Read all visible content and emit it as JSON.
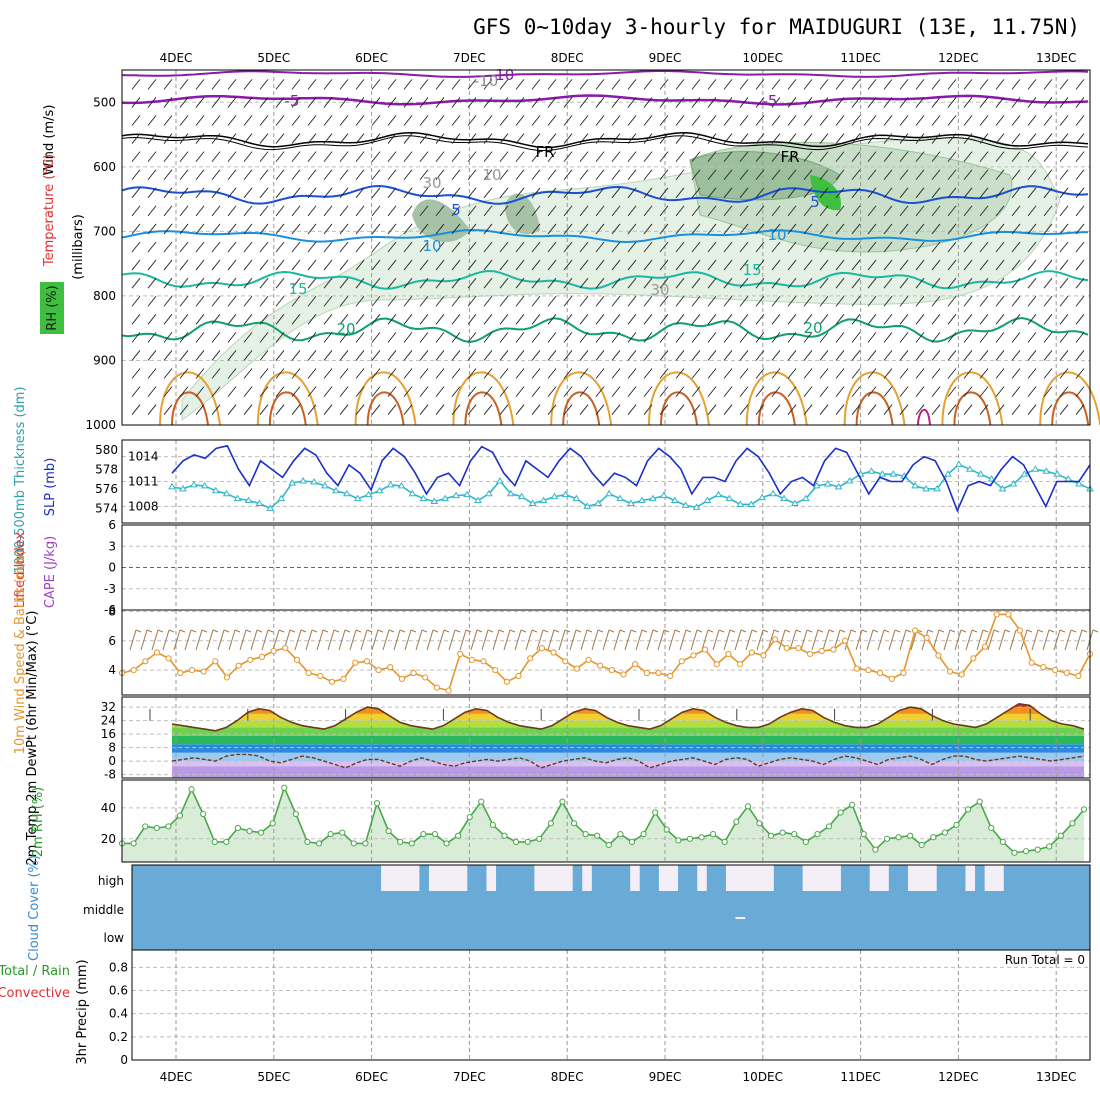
{
  "title": "GFS 0~10day 3-hourly for MAIDUGURI (13E, 11.75N)",
  "dates": [
    "4DEC",
    "5DEC",
    "6DEC",
    "7DEC",
    "8DEC",
    "9DEC",
    "10DEC",
    "11DEC",
    "12DEC",
    "13DEC"
  ],
  "colors": {
    "frame": "#000000",
    "grid": "#9a9a9a",
    "rh_green": "#3fbf3f",
    "temp_purple": "#8a1aa8",
    "temp_blue": "#1a4fd6",
    "temp_lblue": "#1a90e0",
    "temp_teal": "#1ab8a0",
    "temp_green": "#10a070",
    "temp_orange": "#e6a030",
    "slp": "#1a2fc8",
    "thick": "#30b8c8",
    "li": "#e03030",
    "wind10": "#e6962a",
    "barb10": "#a0784a",
    "rh2m": "#4aa84a",
    "cloud": "#6aaad6",
    "cloud_gap": "#f4eef6"
  },
  "chart_data": [
    {
      "panel": "upper-air",
      "type": "line",
      "ylabel": "(millibars)",
      "yticks": [
        500,
        600,
        700,
        800,
        900,
        1000
      ],
      "side_labels": [
        "Wind (m/s)",
        "Temperature (°C)",
        "RH (%)"
      ],
      "isotherm_labels": [
        {
          "text": "-10"
        },
        {
          "text": "-5"
        },
        {
          "text": "-5"
        },
        {
          "text": "FR"
        },
        {
          "text": "FR"
        },
        {
          "text": "5"
        },
        {
          "text": "5"
        },
        {
          "text": "10"
        },
        {
          "text": "10"
        },
        {
          "text": "15"
        },
        {
          "text": "15"
        },
        {
          "text": "20"
        },
        {
          "text": "20"
        },
        {
          "text": "-10"
        },
        {
          "text": "30"
        },
        {
          "text": "30"
        },
        {
          "text": "10"
        }
      ]
    },
    {
      "panel": "slp-thickness",
      "type": "line",
      "left_ticks": [
        574,
        576,
        578,
        580
      ],
      "right_ticks": [
        1008,
        1011,
        1014
      ],
      "left_label": "1000-500mb Thickness (dm)",
      "right_label": "SLP (mb)",
      "series": [
        {
          "name": "SLP",
          "values": [
            1012.0,
            1013.5,
            1014.2,
            1013.8,
            1015.0,
            1015.3,
            1012.5,
            1010.5,
            1013.5,
            1012.5,
            1011.5,
            1013.5,
            1015.0,
            1014.2,
            1012.0,
            1010.5,
            1013.0,
            1012.0,
            1010.0,
            1013.5,
            1015.0,
            1014.0,
            1012.0,
            1009.5,
            1011.5,
            1012.0,
            1010.5,
            1013.5,
            1015.2,
            1014.5,
            1012.0,
            1010.5,
            1013.5,
            1012.5,
            1011.5,
            1013.5,
            1015.0,
            1014.0,
            1012.0,
            1010.5,
            1012.0,
            1011.5,
            1010.5,
            1013.5,
            1015.0,
            1014.0,
            1012.5,
            1009.5,
            1011.5,
            1011.5,
            1011.0,
            1013.5,
            1015.0,
            1014.0,
            1012.0,
            1009.5,
            1011.0,
            1011.5,
            1010.5,
            1013.5,
            1015.0,
            1014.5,
            1012.0,
            1009.5,
            1011.5,
            1011.0,
            1011.0,
            1013.0,
            1014.0,
            1013.5,
            1011.0,
            1007.5,
            1010.5,
            1011.0,
            1010.5,
            1012.5,
            1014.0,
            1013.0,
            1010.5,
            1008.0,
            1011.0,
            1011.0,
            1011.0,
            1013.0
          ]
        },
        {
          "name": "Thickness",
          "values": [
            576.2,
            576.0,
            576.4,
            576.3,
            575.8,
            575.5,
            575.0,
            574.8,
            574.5,
            574.0,
            575.0,
            576.6,
            576.8,
            576.7,
            576.3,
            575.8,
            575.5,
            575.0,
            575.4,
            575.8,
            576.4,
            576.3,
            575.5,
            575.0,
            574.7,
            575.0,
            575.3,
            575.4,
            574.8,
            575.5,
            576.8,
            575.5,
            575.2,
            574.5,
            574.8,
            575.2,
            575.4,
            575.0,
            574.2,
            574.5,
            575.5,
            575.0,
            574.5,
            574.8,
            575.0,
            575.3,
            574.8,
            574.3,
            574.1,
            574.8,
            575.4,
            575.0,
            574.4,
            574.4,
            575.1,
            575.5,
            575.0,
            574.5,
            575.0,
            576.3,
            576.5,
            576.2,
            576.8,
            577.5,
            577.8,
            577.5,
            577.5,
            577.3,
            576.3,
            576.0,
            576.0,
            577.5,
            578.5,
            578.0,
            577.5,
            577.0,
            576.0,
            576.5,
            577.5,
            578.0,
            577.8,
            577.5,
            577.0,
            576.5,
            576.0
          ]
        }
      ]
    },
    {
      "panel": "cape-li",
      "type": "line",
      "left_ticks": [
        6,
        3,
        0,
        -3,
        -6
      ],
      "label_li": "Lifted Index",
      "label_cape": "CAPE (J/kg)",
      "series": [
        {
          "name": "Lifted Index",
          "values": [
            0
          ]
        }
      ]
    },
    {
      "panel": "wind10m",
      "type": "line",
      "yticks": [
        4,
        6,
        8
      ],
      "ylabel": "10m Wind Speed & Barbs (m/s)",
      "series": [
        {
          "name": "10m Wind Speed",
          "values": [
            3.8,
            4.0,
            4.6,
            5.2,
            4.8,
            3.8,
            4.0,
            3.9,
            4.6,
            3.5,
            4.3,
            4.7,
            4.9,
            5.3,
            5.5,
            4.7,
            3.8,
            3.6,
            3.2,
            3.4,
            4.5,
            4.6,
            4.0,
            4.2,
            3.4,
            3.8,
            3.5,
            2.8,
            2.6,
            5.1,
            4.7,
            4.6,
            4.0,
            3.2,
            3.6,
            4.8,
            5.5,
            5.2,
            4.6,
            4.1,
            4.7,
            4.3,
            4.0,
            3.7,
            4.4,
            3.8,
            3.8,
            3.6,
            4.6,
            5.0,
            5.4,
            4.4,
            5.1,
            4.4,
            5.2,
            5.0,
            6.1,
            5.5,
            5.5,
            5.1,
            5.3,
            5.4,
            6.0,
            4.1,
            4.0,
            3.8,
            3.4,
            3.8,
            6.7,
            6.2,
            5.0,
            3.9,
            3.7,
            4.8,
            5.6,
            7.8,
            7.8,
            6.7,
            4.5,
            4.2,
            4.0,
            3.8,
            3.6,
            5.1
          ]
        }
      ]
    },
    {
      "panel": "temp2m",
      "type": "area",
      "yticks": [
        32,
        24,
        16,
        8,
        0,
        -8
      ],
      "ylabel": "2m Temp 2m DewPt (6hr Min/Max) (°C)",
      "series": [
        {
          "name": "2m Temp",
          "values": [
            22,
            21,
            20,
            19,
            18,
            20,
            24,
            29,
            31,
            30,
            26,
            23,
            21,
            20,
            19,
            21,
            25,
            29,
            32,
            31,
            27,
            23,
            21,
            20,
            19,
            21,
            25,
            29,
            31,
            30,
            26,
            23,
            21,
            20,
            19,
            21,
            25,
            29,
            31,
            30,
            26,
            23,
            21,
            20,
            19,
            21,
            25,
            29,
            31,
            30,
            26,
            23,
            21,
            20,
            20,
            22,
            26,
            29,
            31,
            30,
            26,
            23,
            21,
            20,
            20,
            22,
            26,
            30,
            32,
            31,
            27,
            24,
            22,
            21,
            20,
            22,
            26,
            30,
            34,
            33,
            28,
            24,
            22,
            21,
            19
          ]
        },
        {
          "name": "2m DewPt",
          "values": [
            0,
            1,
            2,
            1,
            0,
            3,
            4,
            4,
            3,
            0,
            -1,
            1,
            3,
            2,
            0,
            -2,
            -4,
            -1,
            1,
            1,
            -1,
            -3,
            0,
            2,
            0,
            -2,
            -3,
            -1,
            0,
            1,
            0,
            1,
            2,
            0,
            -4,
            -2,
            0,
            1,
            2,
            0,
            -1,
            1,
            2,
            0,
            -4,
            -2,
            0,
            1,
            2,
            0,
            -2,
            1,
            2,
            1,
            -3,
            -1,
            1,
            2,
            1,
            0,
            -2,
            1,
            3,
            2,
            0,
            -2,
            1,
            2,
            3,
            1,
            -2,
            1,
            3,
            3,
            1,
            0,
            1,
            2,
            3,
            2,
            1,
            0,
            1,
            2,
            3
          ]
        }
      ]
    },
    {
      "panel": "rh2m",
      "type": "area",
      "yticks": [
        20,
        40
      ],
      "ylabel": "2m RH (%)",
      "series": [
        {
          "name": "2m RH",
          "values": [
            17,
            17,
            28,
            27,
            28,
            35,
            52,
            36,
            18,
            18,
            27,
            25,
            24,
            30,
            53,
            36,
            18,
            17,
            23,
            24,
            17,
            17,
            43,
            25,
            18,
            17,
            23,
            23,
            17,
            22,
            34,
            44,
            29,
            22,
            18,
            18,
            20,
            30,
            44,
            30,
            23,
            22,
            16,
            23,
            18,
            23,
            37,
            26,
            19,
            20,
            21,
            23,
            18,
            31,
            41,
            30,
            22,
            24,
            23,
            18,
            23,
            28,
            37,
            42,
            23,
            13,
            20,
            21,
            22,
            16,
            21,
            24,
            29,
            39,
            44,
            27,
            18,
            11,
            12,
            13,
            15,
            22,
            30,
            39
          ]
        }
      ]
    },
    {
      "panel": "cloud",
      "type": "heatmap",
      "layers": [
        "high",
        "middle",
        "low"
      ],
      "ylabel": "Cloud Cover (%)",
      "high_clear_intervals": [
        [
          0.42,
          0.46
        ],
        [
          0.26,
          0.3
        ],
        [
          0.31,
          0.34
        ],
        [
          0.32,
          0.35
        ],
        [
          0.37,
          0.38
        ],
        [
          0.44,
          0.45
        ],
        [
          0.47,
          0.48
        ],
        [
          0.52,
          0.53
        ],
        [
          0.55,
          0.57
        ],
        [
          0.59,
          0.6
        ],
        [
          0.62,
          0.67
        ],
        [
          0.7,
          0.74
        ],
        [
          0.77,
          0.79
        ],
        [
          0.81,
          0.84
        ],
        [
          0.87,
          0.88
        ],
        [
          0.89,
          0.91
        ]
      ],
      "mid_clear_intervals": [
        [
          0.63,
          0.64
        ]
      ]
    },
    {
      "panel": "precip",
      "type": "bar",
      "yticks": [
        0,
        0.2,
        0.4,
        0.6,
        0.8
      ],
      "ylabel": "3hr Precip (mm)",
      "side_labels": [
        "Total / Rain",
        "Convective"
      ],
      "annotation": "Run Total = 0",
      "series": [
        {
          "name": "3hr Precip",
          "values": [
            0
          ]
        }
      ]
    }
  ]
}
